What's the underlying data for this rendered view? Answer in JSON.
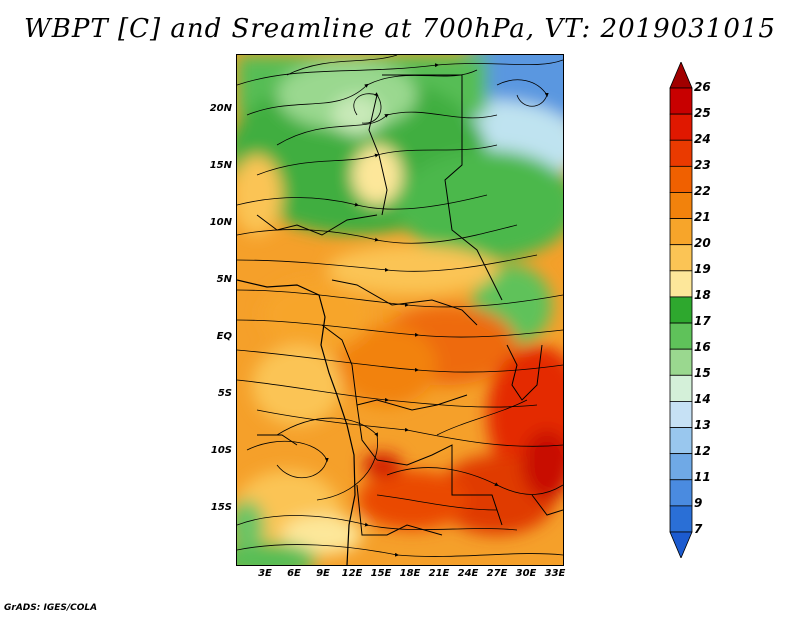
{
  "title": "WBPT [C] and Sreamline at 700hPa, VT: 2019031015",
  "credit": "GrADS: IGES/COLA",
  "map": {
    "lat_labels": [
      "20N",
      "15N",
      "10N",
      "5N",
      "EQ",
      "5S",
      "10S",
      "15S"
    ],
    "lon_labels": [
      "3E",
      "6E",
      "9E",
      "12E",
      "15E",
      "18E",
      "21E",
      "24E",
      "27E",
      "30E",
      "33E"
    ],
    "field": "wet-bulb potential temperature",
    "overlay": "streamlines",
    "level": "700hPa"
  },
  "colorbar": {
    "labels": [
      "26",
      "25",
      "24",
      "23",
      "22",
      "21",
      "20",
      "19",
      "18",
      "17",
      "16",
      "15",
      "14",
      "13",
      "12",
      "11",
      "9",
      "7"
    ],
    "colors": [
      "#a10000",
      "#c80000",
      "#e01800",
      "#ea3a00",
      "#f06000",
      "#f2820c",
      "#f7a52a",
      "#fbc455",
      "#fde79a",
      "#2ea82e",
      "#5fc25a",
      "#9ad88f",
      "#d4f0d9",
      "#c6e1f5",
      "#99c7ee",
      "#6fa9e6",
      "#4a8be0",
      "#2a6fd6",
      "#1c5bd0"
    ]
  }
}
